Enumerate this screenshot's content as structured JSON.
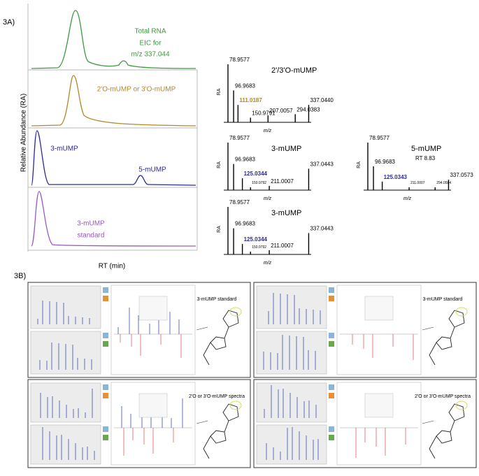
{
  "panel_a": {
    "label": "3A)",
    "y_axis_label": "Relative Abundance (RA)",
    "x_axis_label": "RT (min)",
    "chromatograms": [
      {
        "lines": [
          "Total RNA",
          "EIC for",
          "m/z 337.044"
        ],
        "color": "#3c9a3c"
      },
      {
        "lines": [
          "2'O-mUMP or 3'O-mUMP"
        ],
        "color": "#b08a2a"
      },
      {
        "lines": [
          "3-mUMP",
          "5-mUMP"
        ],
        "color": "#2a2a9a"
      },
      {
        "lines": [
          "3-mUMP",
          "standard"
        ],
        "color": "#9a5ac0"
      }
    ],
    "spectra": [
      {
        "title": "2'/3'O-mUMP",
        "y_label": "RA",
        "x_label": "m/z",
        "xlim": [
          70,
          345
        ],
        "peaks": [
          {
            "mz": 78.9577,
            "label": "78.9577",
            "ra": 100
          },
          {
            "mz": 96.9683,
            "label": "96.9683",
            "ra": 55
          },
          {
            "mz": 111.0187,
            "label": "111.0187",
            "ra": 30,
            "color": "#b08a2a"
          },
          {
            "mz": 150.9791,
            "label": "150.9791",
            "ra": 8
          },
          {
            "mz": 207.0057,
            "label": "207.0057",
            "ra": 12
          },
          {
            "mz": 294.0383,
            "label": "294.0383",
            "ra": 14
          },
          {
            "mz": 337.044,
            "label": "337.0440",
            "ra": 30
          }
        ]
      },
      {
        "title": "3-mUMP",
        "y_label": "RA",
        "x_label": "m/z",
        "xlim": [
          70,
          345
        ],
        "peaks": [
          {
            "mz": 78.9577,
            "label": "78.9577",
            "ra": 100
          },
          {
            "mz": 96.9683,
            "label": "96.9683",
            "ra": 55
          },
          {
            "mz": 125.0344,
            "label": "125.0344",
            "ra": 25,
            "color": "#2a2a9a"
          },
          {
            "mz": 150.9792,
            "label": "150.9792",
            "ra": 6
          },
          {
            "mz": 211.0007,
            "label": "211.0007",
            "ra": 9
          },
          {
            "mz": 337.0443,
            "label": "337.0443",
            "ra": 45
          }
        ]
      },
      {
        "title": "5-mUMP",
        "subtitle": "RT 8.83",
        "y_label": "RA",
        "x_label": "m/z",
        "xlim": [
          70,
          345
        ],
        "peaks": [
          {
            "mz": 78.9577,
            "label": "78.9577",
            "ra": 100
          },
          {
            "mz": 96.9683,
            "label": "96.9683",
            "ra": 50
          },
          {
            "mz": 125.0343,
            "label": "125.0343",
            "ra": 18,
            "color": "#2a2a9a"
          },
          {
            "mz": 211.0007,
            "label": "211.0007",
            "ra": 6
          },
          {
            "mz": 294.0584,
            "label": "294.0584",
            "ra": 6
          },
          {
            "mz": 337.0573,
            "label": "337.0573",
            "ra": 22
          }
        ]
      },
      {
        "title": "3-mUMP",
        "y_label": "RA",
        "x_label": "m/z",
        "xlim": [
          70,
          345
        ],
        "peaks": [
          {
            "mz": 78.9577,
            "label": "78.9577",
            "ra": 100
          },
          {
            "mz": 96.9683,
            "label": "96.9683",
            "ra": 55
          },
          {
            "mz": 125.0344,
            "label": "125.0344",
            "ra": 22,
            "color": "#2a2a9a"
          },
          {
            "mz": 150.9792,
            "label": "150.9792",
            "ra": 6
          },
          {
            "mz": 211.0007,
            "label": "211.0007",
            "ra": 9
          },
          {
            "mz": 337.0443,
            "label": "337.0443",
            "ra": 45
          }
        ]
      }
    ]
  },
  "panel_b": {
    "label": "3B)",
    "screens": [
      {
        "title": "3-mUMP standard"
      },
      {
        "title": "3-mUMP standard"
      },
      {
        "title": "2'O or 3'O-mUMP spectra"
      },
      {
        "title": "2'O or 3'O-mUMP spectra"
      }
    ]
  }
}
